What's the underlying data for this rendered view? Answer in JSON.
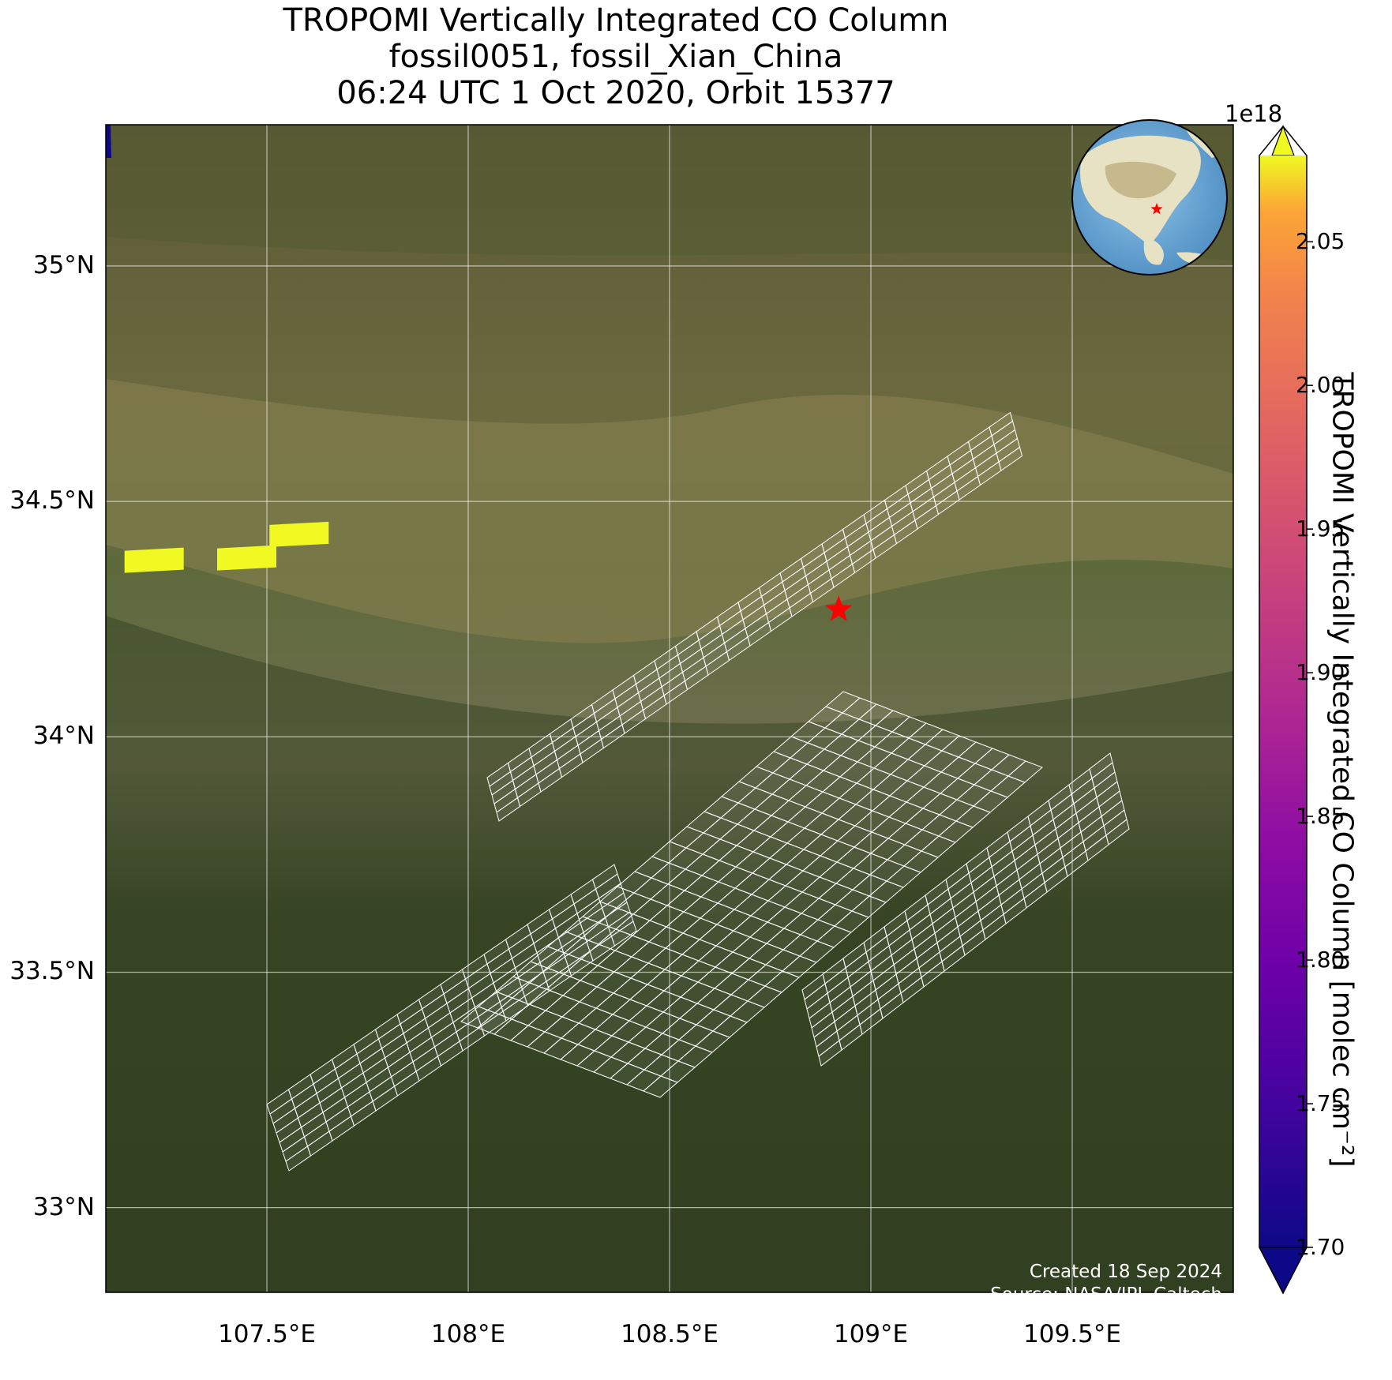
{
  "title": {
    "line1": "TROPOMI Vertically Integrated CO Column",
    "line2": "fossil0051, fossil_Xian_China",
    "line3": "06:24 UTC 1 Oct 2020, Orbit 15377"
  },
  "map": {
    "lon_range": [
      107.1,
      109.9
    ],
    "lat_range": [
      32.82,
      35.3
    ],
    "lat_ticks": [
      {
        "value": 35.0,
        "label": "35°N"
      },
      {
        "value": 34.5,
        "label": "34.5°N"
      },
      {
        "value": 34.0,
        "label": "34°N"
      },
      {
        "value": 33.5,
        "label": "33.5°N"
      },
      {
        "value": 33.0,
        "label": "33°N"
      }
    ],
    "lon_ticks": [
      {
        "value": 107.5,
        "label": "107.5°E"
      },
      {
        "value": 108.0,
        "label": "108°E"
      },
      {
        "value": 108.5,
        "label": "108.5°E"
      },
      {
        "value": 109.0,
        "label": "109°E"
      },
      {
        "value": 109.5,
        "label": "109.5°E"
      }
    ],
    "gridlines": true,
    "site": {
      "lon": 108.92,
      "lat": 34.27,
      "marker": "red-star"
    },
    "filled_pixels": [
      {
        "lon": 107.22,
        "lat": 34.375,
        "value": 2.08e+18
      },
      {
        "lon": 107.45,
        "lat": 34.38,
        "value": 2.07e+18
      },
      {
        "lon": 107.58,
        "lat": 34.43,
        "value": 2.085e+18
      }
    ],
    "colors": {
      "terrain": "#3d4a2a",
      "valley": "#7a7146",
      "grid_outline": "#ffffff",
      "site": "#ff0000"
    }
  },
  "colorbar": {
    "min": 1.7e+18,
    "max": 2.08e+18,
    "exponent_label": "1e18",
    "ticks": [
      "1.70",
      "1.75",
      "1.80",
      "1.85",
      "1.90",
      "1.95",
      "2.00",
      "2.05"
    ],
    "tick_values": [
      1.7,
      1.75,
      1.8,
      1.85,
      1.9,
      1.95,
      2.0,
      2.05
    ],
    "label": "TROPOMI Vertically Integrated CO Column [molec cm⁻²]",
    "colormap": "plasma",
    "extend": "both"
  },
  "inset_globe": {
    "center": "Asia",
    "marker": "red-star"
  },
  "credits": {
    "created": "Created 18 Sep 2024",
    "source": "Source: NASA/JPL-Caltech"
  }
}
